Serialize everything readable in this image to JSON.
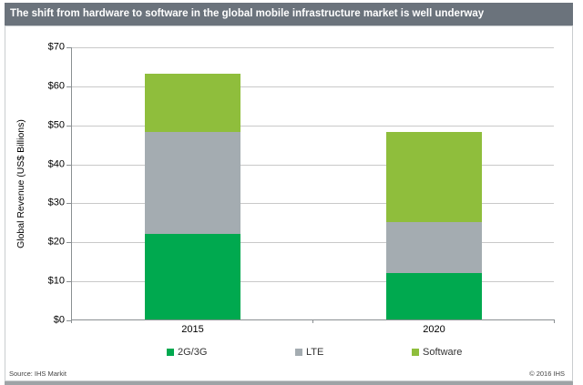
{
  "header": {
    "title": "The shift from hardware to software in the global mobile infrastructure market is well underway",
    "bg_color": "#6B737C"
  },
  "chart_data": {
    "type": "bar",
    "stacked": true,
    "title": "The shift from hardware to software in the global mobile infrastructure market is well underway",
    "ylabel": "Global Revenue (US$ Billions)",
    "xlabel": "",
    "categories": [
      "2015",
      "2020"
    ],
    "series": [
      {
        "name": "2G/3G",
        "color": "#00A94F",
        "values": [
          22,
          12
        ]
      },
      {
        "name": "LTE",
        "color": "#A4ACB1",
        "values": [
          26,
          13
        ]
      },
      {
        "name": "Software",
        "color": "#8FBE3C",
        "values": [
          15,
          23
        ]
      }
    ],
    "totals": [
      63,
      48
    ],
    "ylim": [
      0,
      70
    ],
    "ytick_interval": 10,
    "ytick_prefix": "$",
    "grid": true,
    "legend_position": "bottom"
  },
  "footer": {
    "source": "Source: IHS Markit",
    "copyright": "© 2016 IHS"
  }
}
